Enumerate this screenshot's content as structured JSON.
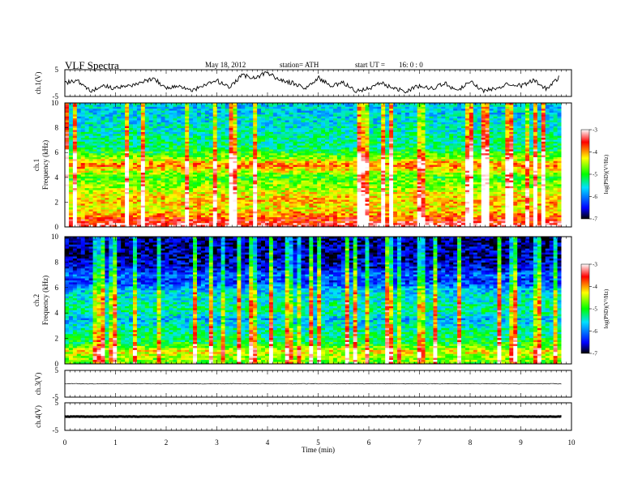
{
  "header": {
    "title": "VLF  Spectra",
    "date": "May 18, 2012",
    "station": "station= ATH",
    "start_label": "start  UT  =",
    "start_time": "16: 0  : 0"
  },
  "chart_data": [
    {
      "id": "ch1_waveform",
      "type": "line",
      "ylabel": "ch.1(V)",
      "ylim": [
        -5,
        5
      ],
      "yticks": [
        "5",
        "-5"
      ],
      "description_values": "broadband waveform, values oscillate between about -5 and 5 V",
      "x": [
        0,
        0.25,
        0.5,
        0.75,
        1,
        1.25,
        1.5,
        1.75,
        2,
        2.25,
        2.5,
        2.75,
        3,
        3.25,
        3.5,
        3.75,
        4,
        4.25,
        4.5,
        4.75,
        5,
        5.25,
        5.5,
        5.75,
        6,
        6.25,
        6.5,
        6.75,
        7,
        7.25,
        7.5,
        7.75,
        8,
        8.25,
        8.5,
        8.75,
        9,
        9.25,
        9.5,
        9.75
      ],
      "y": [
        0,
        1,
        -3,
        -1,
        -2,
        -1,
        0,
        2,
        -2,
        -1,
        -3,
        -1,
        1,
        -2,
        3,
        2,
        4,
        1,
        0,
        -2,
        2,
        -1,
        0,
        -3,
        -2,
        0,
        -2,
        -3,
        -1,
        -2,
        0,
        -3,
        1,
        -3,
        -2,
        0,
        -1,
        1,
        -2,
        2
      ]
    },
    {
      "id": "ch1_spectrogram",
      "type": "heatmap",
      "ylabel": "ch.1\nFrequency  (kHz)",
      "ylim": [
        0,
        10
      ],
      "yticks": [
        "10",
        "8",
        "6",
        "4",
        "2",
        "0"
      ],
      "colorbar": {
        "label": "log(PSD)(V²/Hz)",
        "range": [
          -7,
          -3
        ],
        "ticks": [
          "-3",
          "-4",
          "-5",
          "-6",
          "-7"
        ]
      },
      "mean_logpsd_by_freq_kHz": {
        "freq": [
          0,
          0.5,
          1,
          1.5,
          2,
          2.5,
          3,
          3.5,
          4,
          4.5,
          5,
          5.5,
          6,
          6.5,
          7,
          7.5,
          8,
          8.5,
          9,
          9.5,
          10
        ],
        "logpsd": [
          -3.2,
          -3.6,
          -4.0,
          -4.3,
          -4.1,
          -4.2,
          -4.5,
          -4.7,
          -4.9,
          -4.4,
          -3.8,
          -4.6,
          -5.0,
          -5.3,
          -5.3,
          -5.4,
          -5.5,
          -5.6,
          -5.6,
          -5.7,
          -5.6
        ]
      }
    },
    {
      "id": "ch2_spectrogram",
      "type": "heatmap",
      "ylabel": "ch.2\nFrequency  (kHz)",
      "ylim": [
        0,
        10
      ],
      "yticks": [
        "10",
        "8",
        "6",
        "4",
        "2",
        "0"
      ],
      "colorbar": {
        "label": "log(PSD)(V²/Hz)",
        "range": [
          -7,
          -3
        ],
        "ticks": [
          "-3",
          "-4",
          "-5",
          "-6",
          "-7"
        ]
      },
      "mean_logpsd_by_freq_kHz": {
        "freq": [
          0,
          0.5,
          1,
          1.5,
          2,
          2.5,
          3,
          3.5,
          4,
          4.5,
          5,
          5.5,
          6,
          6.5,
          7,
          7.5,
          8,
          8.5,
          9,
          9.5,
          10
        ],
        "logpsd": [
          -4.8,
          -4.6,
          -4.3,
          -5.0,
          -5.2,
          -5.3,
          -5.5,
          -5.8,
          -5.4,
          -5.3,
          -5.5,
          -5.6,
          -5.9,
          -6.3,
          -6.1,
          -6.5,
          -6.6,
          -6.7,
          -6.7,
          -6.8,
          -6.7
        ]
      }
    },
    {
      "id": "ch3_waveform",
      "type": "line",
      "ylabel": "ch.3(V)",
      "ylim": [
        -5,
        5
      ],
      "yticks": [
        "5",
        "-5"
      ],
      "x": [
        0,
        9.8
      ],
      "y": [
        0,
        0
      ]
    },
    {
      "id": "ch4_waveform",
      "type": "line",
      "ylabel": "ch.4(V)",
      "ylim": [
        -5,
        5
      ],
      "yticks": [
        "5",
        "-5"
      ],
      "x": [
        0,
        9.8
      ],
      "y": [
        0,
        0
      ]
    }
  ],
  "xaxis": {
    "label": "Time  (min)",
    "range": [
      0,
      10
    ],
    "ticks": [
      "0",
      "1",
      "2",
      "3",
      "4",
      "5",
      "6",
      "7",
      "8",
      "9",
      "10"
    ]
  },
  "colors": {
    "colormap": [
      "#000000",
      "#0000ff",
      "#00e0ff",
      "#00ff00",
      "#ffff00",
      "#ff0000",
      "#ffffff"
    ]
  }
}
